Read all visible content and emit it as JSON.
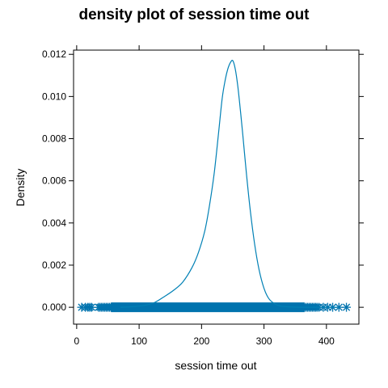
{
  "chart_data": {
    "type": "line",
    "title": "density plot of session time out",
    "xlabel": "session time out",
    "ylabel": "Density",
    "xlim": [
      -5,
      452
    ],
    "ylim": [
      -0.0008,
      0.0122
    ],
    "x_ticks": [
      0,
      100,
      200,
      300,
      400
    ],
    "y_ticks": [
      0.0,
      0.002,
      0.004,
      0.006,
      0.008,
      0.01,
      0.012
    ],
    "y_tick_labels": [
      "0.000",
      "0.002",
      "0.004",
      "0.006",
      "0.008",
      "0.010",
      "0.012"
    ],
    "grid": false,
    "line_color": "#0080b5",
    "rug_color": "#0073ae",
    "density": {
      "x": [
        70,
        90,
        110,
        125,
        140,
        155,
        170,
        185,
        195,
        205,
        212,
        220,
        227,
        233,
        238,
        242,
        246,
        250,
        254,
        258,
        262,
        266,
        272,
        278,
        285,
        292,
        300,
        308,
        318,
        328,
        340,
        360,
        390,
        420
      ],
      "y": [
        0.0,
        3e-05,
        0.0001,
        0.00023,
        0.0005,
        0.0008,
        0.0012,
        0.0019,
        0.0026,
        0.0036,
        0.0047,
        0.0063,
        0.0082,
        0.0099,
        0.0108,
        0.0113,
        0.0116,
        0.0117,
        0.0113,
        0.0105,
        0.0094,
        0.0082,
        0.0063,
        0.0046,
        0.003,
        0.0018,
        0.0009,
        0.0004,
        0.00015,
        5e-05,
        2e-05,
        0.0,
        0.0,
        0.0
      ]
    },
    "rug": {
      "dense_range": [
        35,
        385
      ],
      "outliers": [
        8,
        14,
        18,
        21,
        24,
        388,
        395,
        402,
        410,
        420,
        432
      ]
    }
  }
}
